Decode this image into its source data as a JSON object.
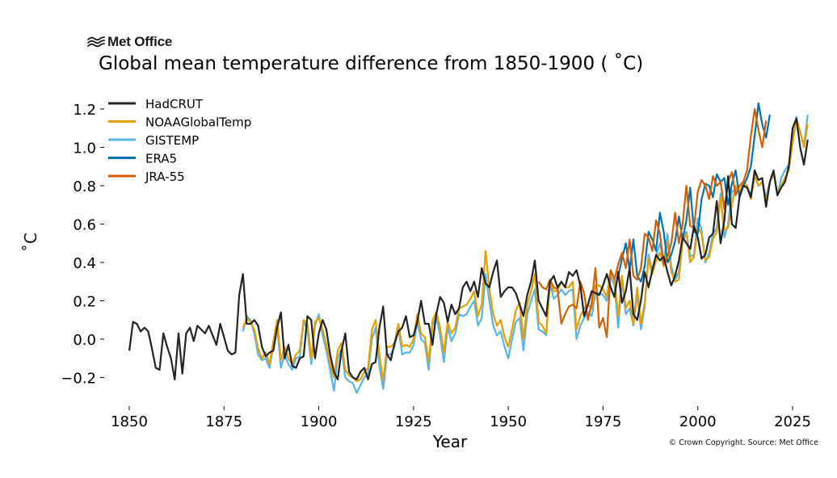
{
  "brand": {
    "name": "Met Office",
    "icon": "met-office-wave-logo-icon"
  },
  "copyright": "© Crown Copyright. Source: Met Office",
  "chart_data": {
    "type": "line",
    "title": "Global mean temperature difference from 1850-1900 ( ˚C)",
    "xlabel": "Year",
    "ylabel": "˚C",
    "xlim": [
      1843,
      2026
    ],
    "ylim": [
      -0.34,
      1.28
    ],
    "xticks": [
      1850,
      1875,
      1900,
      1925,
      1950,
      1975,
      2000,
      2025
    ],
    "xtick_labels": [
      "1850",
      "1875",
      "1900",
      "1925",
      "1950",
      "1975",
      "2000",
      "2025"
    ],
    "yticks": [
      -0.2,
      0.0,
      0.2,
      0.4,
      0.6,
      0.8,
      1.0,
      1.2
    ],
    "ytick_labels": [
      "−0.2",
      "0.0",
      "0.2",
      "0.4",
      "0.6",
      "0.8",
      "1.0",
      "1.2"
    ],
    "grid": false,
    "legend_position": "top-left",
    "series": [
      {
        "name": "GISTEMP",
        "color": "#56b4e9",
        "x_start": 1880,
        "values": [
          0.04,
          0.12,
          0.1,
          0.03,
          -0.08,
          -0.11,
          -0.1,
          -0.15,
          -0.04,
          0.07,
          -0.15,
          -0.08,
          -0.13,
          -0.16,
          -0.1,
          -0.09,
          0.09,
          0.05,
          -0.13,
          0.07,
          0.13,
          0.02,
          -0.06,
          -0.16,
          -0.27,
          -0.1,
          -0.05,
          -0.2,
          -0.22,
          -0.23,
          -0.28,
          -0.24,
          -0.2,
          -0.18,
          0.0,
          0.06,
          -0.14,
          -0.26,
          -0.08,
          -0.08,
          -0.04,
          0.06,
          -0.08,
          -0.07,
          -0.07,
          -0.03,
          0.09,
          0.0,
          -0.02,
          -0.16,
          0.07,
          0.12,
          0.02,
          -0.12,
          0.06,
          -0.01,
          0.03,
          0.13,
          0.12,
          0.13,
          0.17,
          0.2,
          0.07,
          0.11,
          0.34,
          0.2,
          0.07,
          0.02,
          0.04,
          -0.04,
          -0.1,
          0.0,
          0.09,
          0.11,
          -0.06,
          0.13,
          0.2,
          0.26,
          0.05,
          0.04,
          0.02,
          0.29,
          0.21,
          0.23,
          0.26,
          0.23,
          0.25,
          0.26,
          0.0,
          0.07,
          0.11,
          0.14,
          0.12,
          0.24,
          0.24,
          0.23,
          0.2,
          0.33,
          0.28,
          0.06,
          0.31,
          0.13,
          0.16,
          0.07,
          0.24,
          0.05,
          0.17,
          0.44,
          0.36,
          0.43,
          0.5,
          0.4,
          0.55,
          0.38,
          0.31,
          0.35,
          0.54,
          0.56,
          0.43,
          0.44,
          0.63,
          0.57,
          0.4,
          0.45,
          0.55,
          0.58,
          0.76,
          0.53,
          0.6,
          0.77,
          0.78,
          0.76,
          0.81,
          0.8,
          0.75,
          0.86,
          0.8,
          0.82,
          0.74,
          0.82,
          0.87,
          0.75,
          0.84,
          0.88,
          0.91,
          1.04,
          1.16,
          1.08,
          1.01,
          1.17
        ]
      },
      {
        "name": "NOAAGlobalTemp",
        "color": "#e69f00",
        "x_start": 1880,
        "values": [
          0.06,
          0.11,
          0.09,
          0.05,
          -0.05,
          -0.1,
          -0.07,
          -0.13,
          -0.01,
          0.1,
          -0.11,
          -0.04,
          -0.1,
          -0.13,
          -0.08,
          -0.06,
          0.1,
          0.08,
          -0.1,
          0.09,
          0.11,
          0.05,
          -0.03,
          -0.13,
          -0.2,
          -0.06,
          -0.02,
          -0.16,
          -0.19,
          -0.2,
          -0.22,
          -0.21,
          -0.17,
          -0.15,
          0.05,
          0.1,
          -0.08,
          -0.22,
          -0.04,
          -0.04,
          -0.02,
          0.08,
          -0.04,
          -0.03,
          -0.04,
          0.0,
          0.13,
          0.03,
          0.01,
          -0.12,
          0.1,
          0.14,
          0.06,
          -0.07,
          0.09,
          0.03,
          0.06,
          0.16,
          0.17,
          0.18,
          0.21,
          0.25,
          0.12,
          0.18,
          0.46,
          0.27,
          0.13,
          0.07,
          0.1,
          0.01,
          -0.04,
          0.05,
          0.15,
          0.19,
          0.0,
          0.18,
          0.25,
          0.34,
          0.09,
          0.07,
          0.03,
          0.3,
          0.25,
          0.25,
          0.3,
          0.27,
          0.27,
          0.3,
          0.05,
          0.12,
          0.16,
          0.18,
          0.16,
          0.28,
          0.28,
          0.26,
          0.22,
          0.36,
          0.32,
          0.12,
          0.33,
          0.16,
          0.2,
          0.08,
          0.27,
          0.08,
          0.19,
          0.42,
          0.34,
          0.41,
          0.45,
          0.38,
          0.51,
          0.35,
          0.3,
          0.31,
          0.51,
          0.55,
          0.4,
          0.43,
          0.58,
          0.55,
          0.41,
          0.43,
          0.52,
          0.56,
          0.74,
          0.57,
          0.58,
          0.7,
          0.8,
          0.76,
          0.82,
          0.8,
          0.73,
          0.85,
          0.8,
          0.82,
          0.72,
          0.82,
          0.86,
          0.76,
          0.8,
          0.84,
          0.88,
          1.02,
          1.15,
          1.08,
          1.0,
          1.12
        ]
      },
      {
        "name": "ERA5",
        "color": "#0072b2",
        "x_start": 1979,
        "values": [
          0.33,
          0.42,
          0.5,
          0.36,
          0.52,
          0.33,
          0.3,
          0.38,
          0.56,
          0.52,
          0.46,
          0.66,
          0.56,
          0.4,
          0.44,
          0.51,
          0.64,
          0.52,
          0.62,
          0.79,
          0.56,
          0.55,
          0.73,
          0.81,
          0.8,
          0.74,
          0.86,
          0.82,
          0.84,
          0.7,
          0.81,
          0.88,
          0.74,
          0.8,
          0.84,
          0.9,
          1.06,
          1.23,
          1.12,
          1.05,
          1.17
        ]
      },
      {
        "name": "JRA-55",
        "color": "#d55e00",
        "x_start": 1958,
        "values": [
          0.3,
          0.27,
          0.26,
          0.31,
          0.27,
          0.26,
          0.08,
          0.13,
          0.17,
          0.18,
          0.16,
          0.3,
          0.24,
          0.1,
          0.19,
          0.37,
          0.06,
          0.11,
          0.01,
          0.36,
          0.31,
          0.39,
          0.45,
          0.37,
          0.52,
          0.33,
          0.31,
          0.37,
          0.55,
          0.53,
          0.46,
          0.62,
          0.55,
          0.39,
          0.43,
          0.5,
          0.66,
          0.5,
          0.6,
          0.8,
          0.59,
          0.58,
          0.77,
          0.83,
          0.8,
          0.73,
          0.85,
          0.8,
          0.82,
          0.68,
          0.82,
          0.87,
          0.75,
          0.8,
          0.82,
          0.88,
          1.06,
          1.2,
          1.09,
          1.0,
          1.14
        ]
      },
      {
        "name": "HadCRUT",
        "color": "#222222",
        "x_start": 1850,
        "values": [
          -0.06,
          0.09,
          0.08,
          0.04,
          0.06,
          0.04,
          -0.05,
          -0.15,
          -0.16,
          0.03,
          -0.04,
          -0.1,
          -0.21,
          0.03,
          -0.18,
          0.03,
          0.06,
          -0.01,
          0.07,
          0.05,
          0.03,
          0.07,
          0.02,
          -0.03,
          0.08,
          0.01,
          -0.06,
          -0.08,
          -0.07,
          0.23,
          0.34,
          0.08,
          0.08,
          0.1,
          0.07,
          -0.04,
          -0.09,
          -0.07,
          -0.06,
          0.06,
          0.14,
          -0.1,
          -0.03,
          -0.14,
          -0.15,
          -0.1,
          -0.09,
          0.12,
          0.1,
          -0.1,
          0.03,
          0.1,
          0.05,
          -0.08,
          -0.17,
          -0.21,
          -0.06,
          0.03,
          -0.17,
          -0.2,
          -0.21,
          -0.17,
          -0.15,
          -0.21,
          -0.13,
          -0.12,
          0.06,
          0.17,
          -0.08,
          -0.11,
          -0.02,
          0.04,
          0.06,
          0.12,
          0.01,
          0.02,
          0.09,
          0.2,
          0.08,
          0.08,
          -0.03,
          0.13,
          0.22,
          0.19,
          0.09,
          0.18,
          0.13,
          0.16,
          0.27,
          0.3,
          0.25,
          0.3,
          0.22,
          0.37,
          0.29,
          0.27,
          0.35,
          0.41,
          0.22,
          0.25,
          0.27,
          0.27,
          0.24,
          0.18,
          0.12,
          0.23,
          0.3,
          0.41,
          0.2,
          0.16,
          0.12,
          0.3,
          0.33,
          0.27,
          0.3,
          0.27,
          0.35,
          0.33,
          0.36,
          0.28,
          0.12,
          0.18,
          0.25,
          0.24,
          0.23,
          0.28,
          0.34,
          0.27,
          0.22,
          0.35,
          0.19,
          0.25,
          0.37,
          0.13,
          0.1,
          0.2,
          0.35,
          0.27,
          0.36,
          0.44,
          0.41,
          0.43,
          0.35,
          0.28,
          0.33,
          0.41,
          0.53,
          0.5,
          0.47,
          0.59,
          0.53,
          0.42,
          0.44,
          0.53,
          0.55,
          0.72,
          0.5,
          0.62,
          0.85,
          0.6,
          0.58,
          0.74,
          0.8,
          0.79,
          0.74,
          0.88,
          0.83,
          0.84,
          0.69,
          0.82,
          0.88,
          0.75,
          0.79,
          0.82,
          0.9,
          1.1,
          1.15,
          1.0,
          0.91,
          1.04
        ]
      }
    ],
    "legend": [
      {
        "name": "HadCRUT",
        "color": "#222222"
      },
      {
        "name": "NOAAGlobalTemp",
        "color": "#e69f00"
      },
      {
        "name": "GISTEMP",
        "color": "#56b4e9"
      },
      {
        "name": "ERA5",
        "color": "#0072b2"
      },
      {
        "name": "JRA-55",
        "color": "#d55e00"
      }
    ]
  }
}
